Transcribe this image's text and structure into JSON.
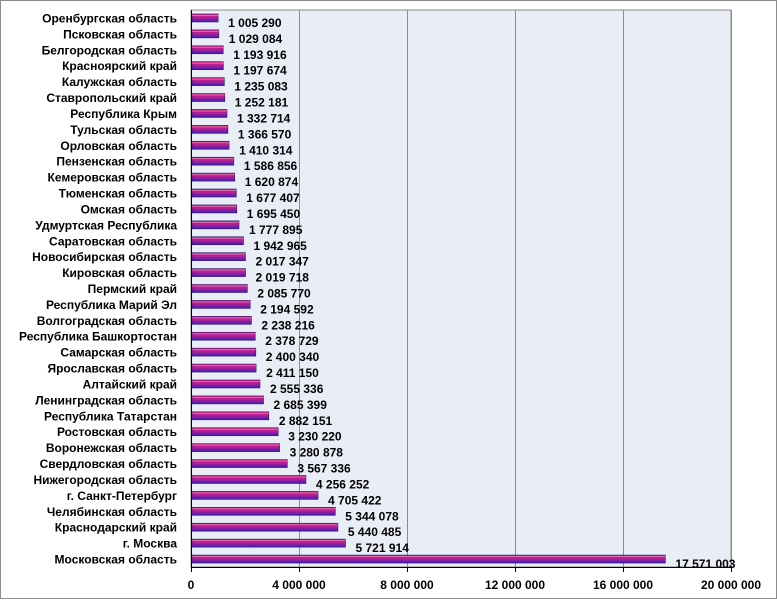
{
  "chart_data": {
    "type": "bar",
    "orientation": "horizontal",
    "title": "",
    "xlabel": "",
    "ylabel": "",
    "xlim": [
      0,
      20000000
    ],
    "grid": true,
    "legend": "none",
    "colors": {
      "plot_background": "#e9edf6",
      "bar_top": "#cc1f7a",
      "bar_bottom": "#3a1fb4",
      "grid": "#8c8c8c"
    },
    "x_ticks": [
      {
        "value": 0,
        "label": "0"
      },
      {
        "value": 4000000,
        "label": "4 000 000"
      },
      {
        "value": 8000000,
        "label": "8 000 000"
      },
      {
        "value": 12000000,
        "label": "12 000 000"
      },
      {
        "value": 16000000,
        "label": "16 000 000"
      },
      {
        "value": 20000000,
        "label": "20 000 000"
      }
    ],
    "categories": [
      "Оренбургская  область",
      "Псковская  область",
      "Белгородская  область",
      "Красноярский  край",
      "Калужская  область",
      "Ставропольский  край",
      "Республика  Крым",
      "Тульская  область",
      "Орловская  область",
      "Пензенская  область",
      "Кемеровская  область",
      "Тюменская  область",
      "Омская  область",
      "Удмуртская  Республика",
      "Саратовская  область",
      "Новосибирская  область",
      "Кировская  область",
      "Пермский  край",
      "Республика  Марий  Эл",
      "Волгоградская  область",
      "Республика  Башкортостан",
      "Самарская  область",
      "Ярославская  область",
      "Алтайский  край",
      "Ленинградская  область",
      "Республика  Татарстан",
      "Ростовская  область",
      "Воронежская  область",
      "Свердловская  область",
      "Нижегородская  область",
      "г. Санкт-Петербург",
      "Челябинская  область",
      "Краснодарский  край",
      "г. Москва",
      "Московская  область"
    ],
    "values": [
      1005290,
      1029084,
      1193916,
      1197674,
      1235083,
      1252181,
      1332714,
      1366570,
      1410314,
      1586856,
      1620874,
      1677407,
      1695450,
      1777895,
      1942965,
      2017347,
      2019718,
      2085770,
      2194592,
      2238216,
      2378729,
      2400340,
      2411150,
      2555336,
      2685399,
      2882151,
      3230220,
      3280878,
      3567336,
      4256252,
      4705422,
      5344078,
      5440485,
      5721914,
      17571003
    ],
    "value_labels": [
      "1 005  290",
      "1 029  084",
      "1 193  916",
      "1 197  674",
      "1 235  083",
      "1 252  181",
      "1 332  714",
      "1 366  570",
      "1 410  314",
      "1 586  856",
      "1 620  874",
      "1 677  407",
      "1 695  450",
      "1 777  895",
      "1 942  965",
      "2 017  347",
      "2 019  718",
      "2 085  770",
      "2 194  592",
      "2 238  216",
      "2 378  729",
      "2 400  340",
      "2 411  150",
      "2 555  336",
      "2 685  399",
      "2 882  151",
      "3 230  220",
      "3 280  878",
      "3 567  336",
      "4 256  252",
      "4 705  422",
      "5 344  078",
      "5 440  485",
      "5 721  914",
      "17 571  003"
    ]
  }
}
